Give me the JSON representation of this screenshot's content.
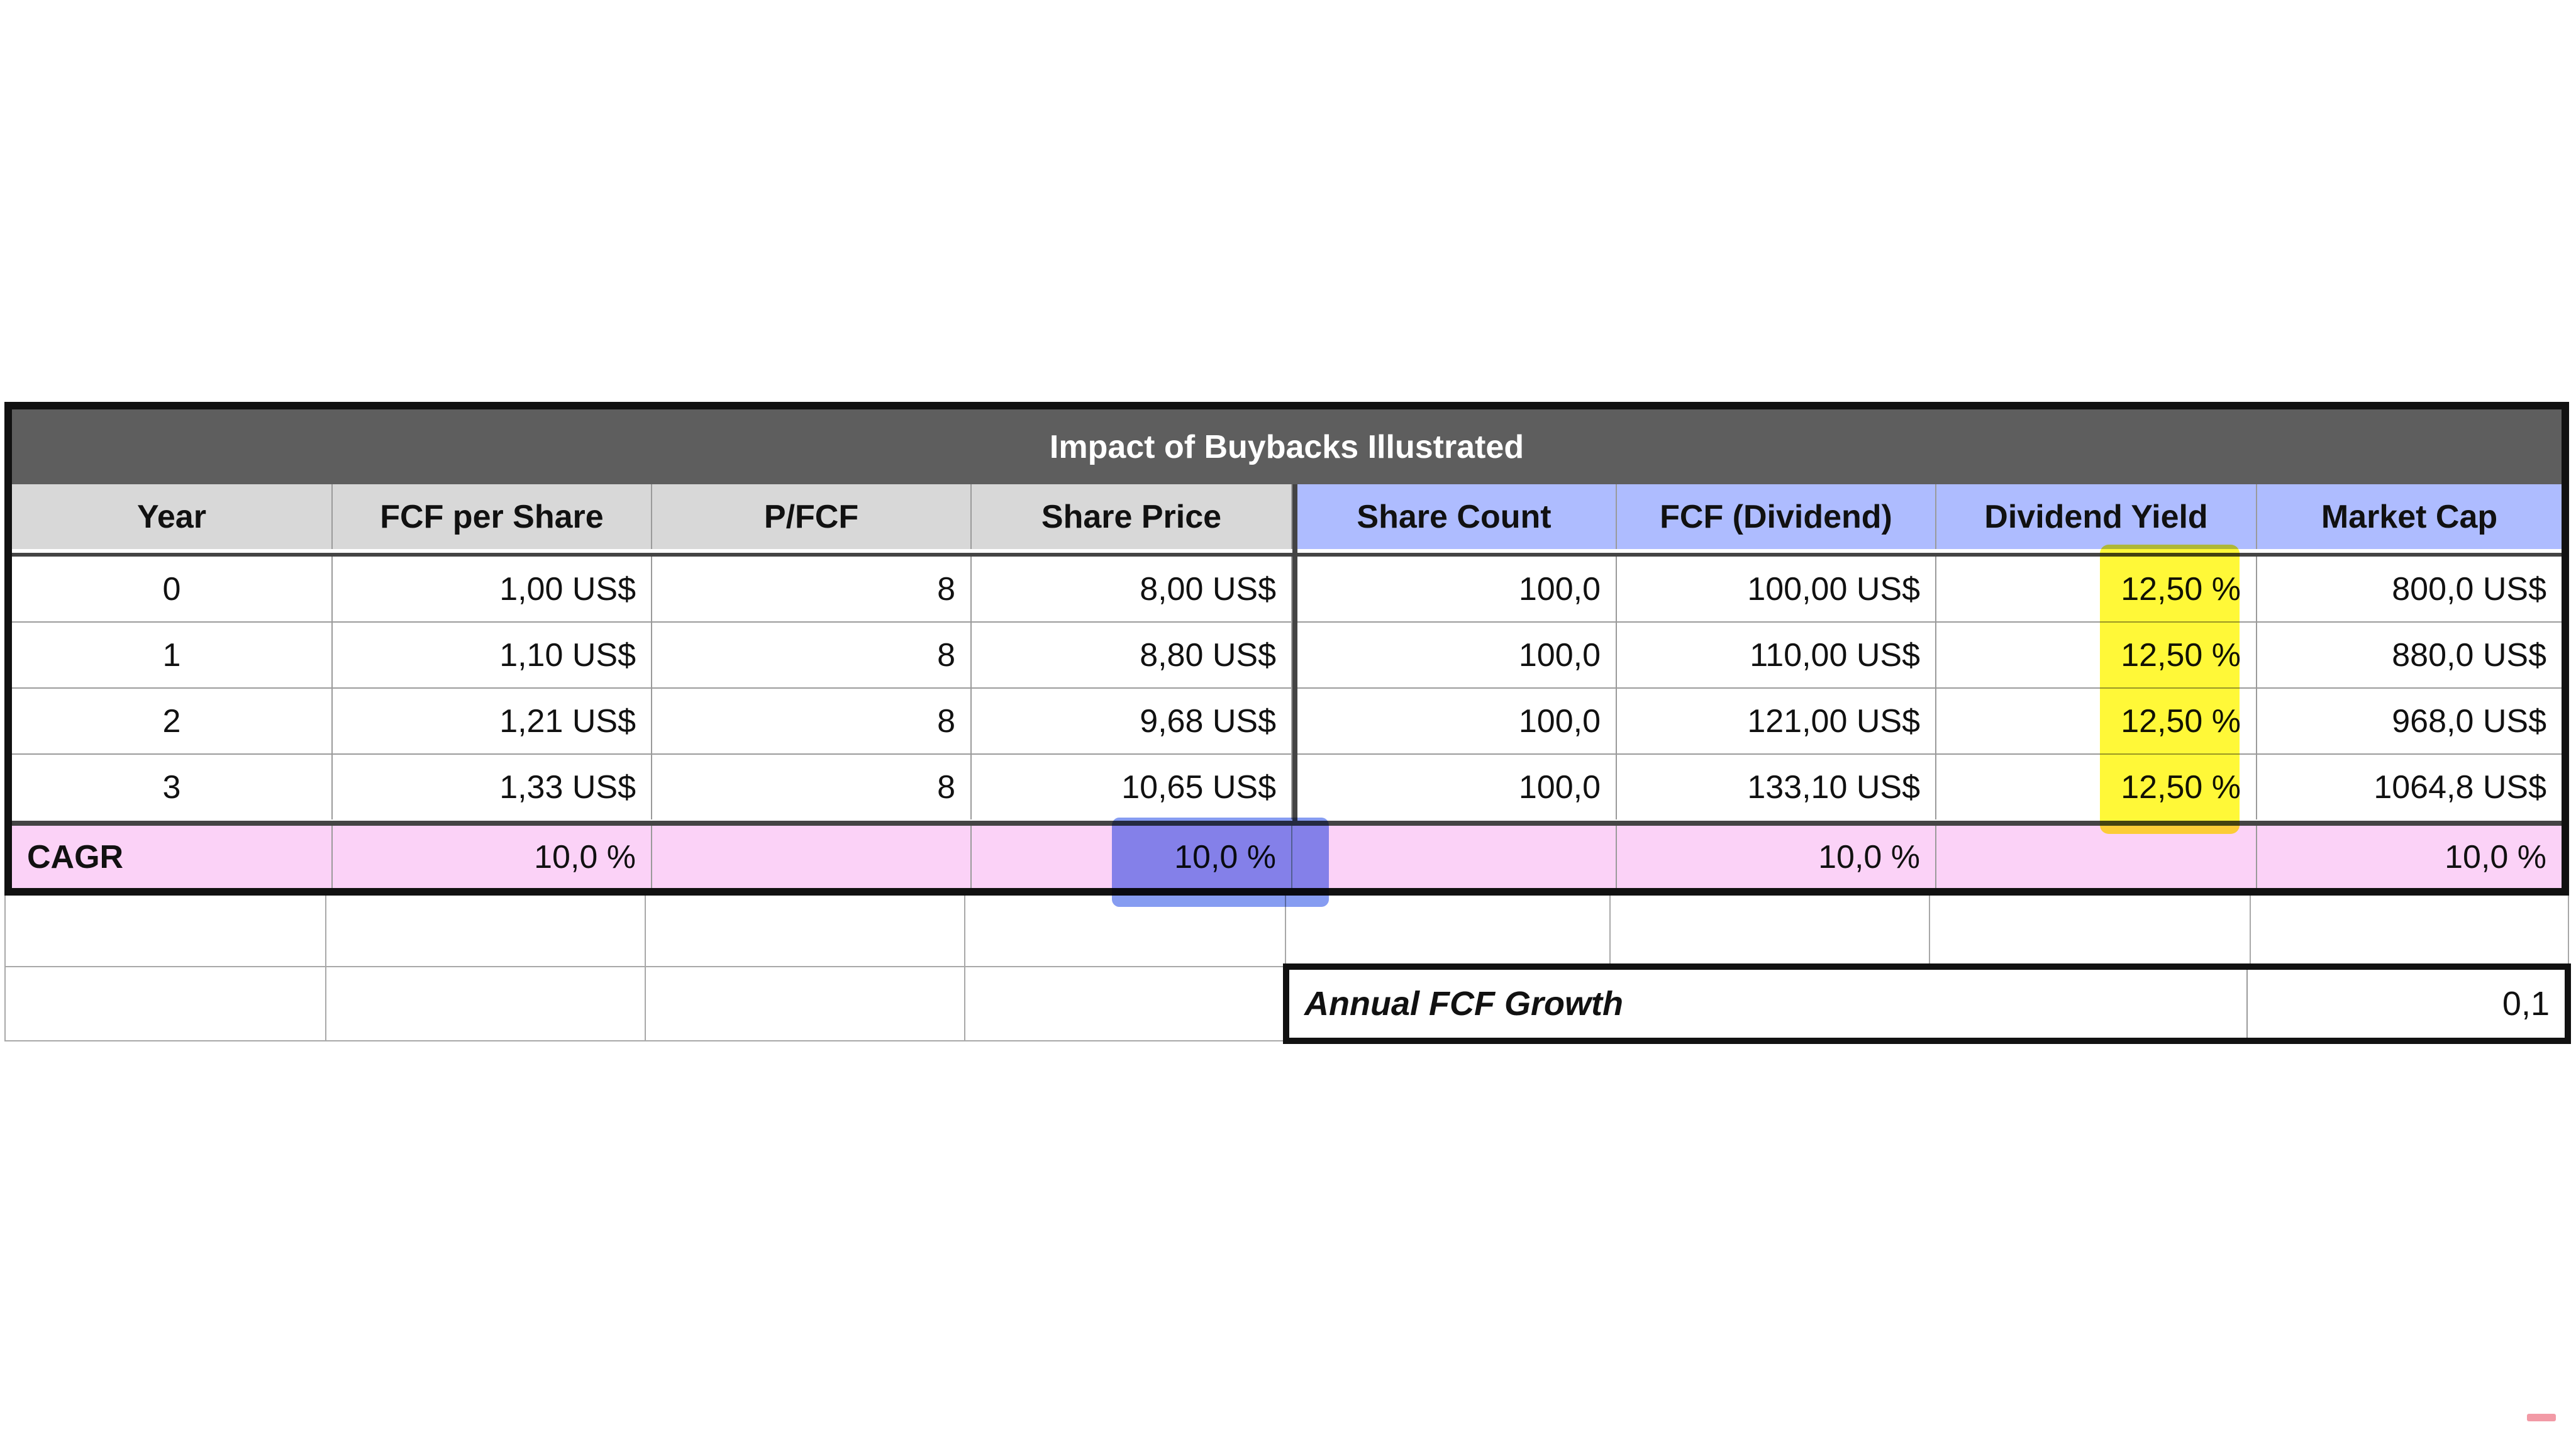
{
  "table": {
    "title": "Impact of Buybacks Illustrated",
    "columns": [
      "Year",
      "FCF per Share",
      "P/FCF",
      "Share Price",
      "Share Count",
      "FCF (Dividend)",
      "Dividend Yield",
      "Market Cap"
    ],
    "rows": [
      [
        "0",
        "1,00 US$",
        "8",
        "8,00 US$",
        "100,0",
        "100,00 US$",
        "12,50 %",
        "800,0 US$"
      ],
      [
        "1",
        "1,10 US$",
        "8",
        "8,80 US$",
        "100,0",
        "110,00 US$",
        "12,50 %",
        "880,0 US$"
      ],
      [
        "2",
        "1,21 US$",
        "8",
        "9,68 US$",
        "100,0",
        "121,00 US$",
        "12,50 %",
        "968,0 US$"
      ],
      [
        "3",
        "1,33 US$",
        "8",
        "10,65 US$",
        "100,0",
        "133,10 US$",
        "12,50 %",
        "1064,8 US$"
      ]
    ],
    "cagr": {
      "label": "CAGR",
      "values": [
        "10,0 %",
        "",
        "10,0 %",
        "",
        "10,0 %",
        "",
        "10,0 %"
      ]
    }
  },
  "growth": {
    "label": "Annual FCF Growth",
    "value": "0,1"
  },
  "colors": {
    "title_bg": "#5e5e5e",
    "header_gray": "#d8d8d8",
    "header_blue": "#aebcff",
    "cagr_pink": "#fbd2f7",
    "highlight_yellow": "#fff600",
    "highlight_blue": "#5876ec"
  }
}
